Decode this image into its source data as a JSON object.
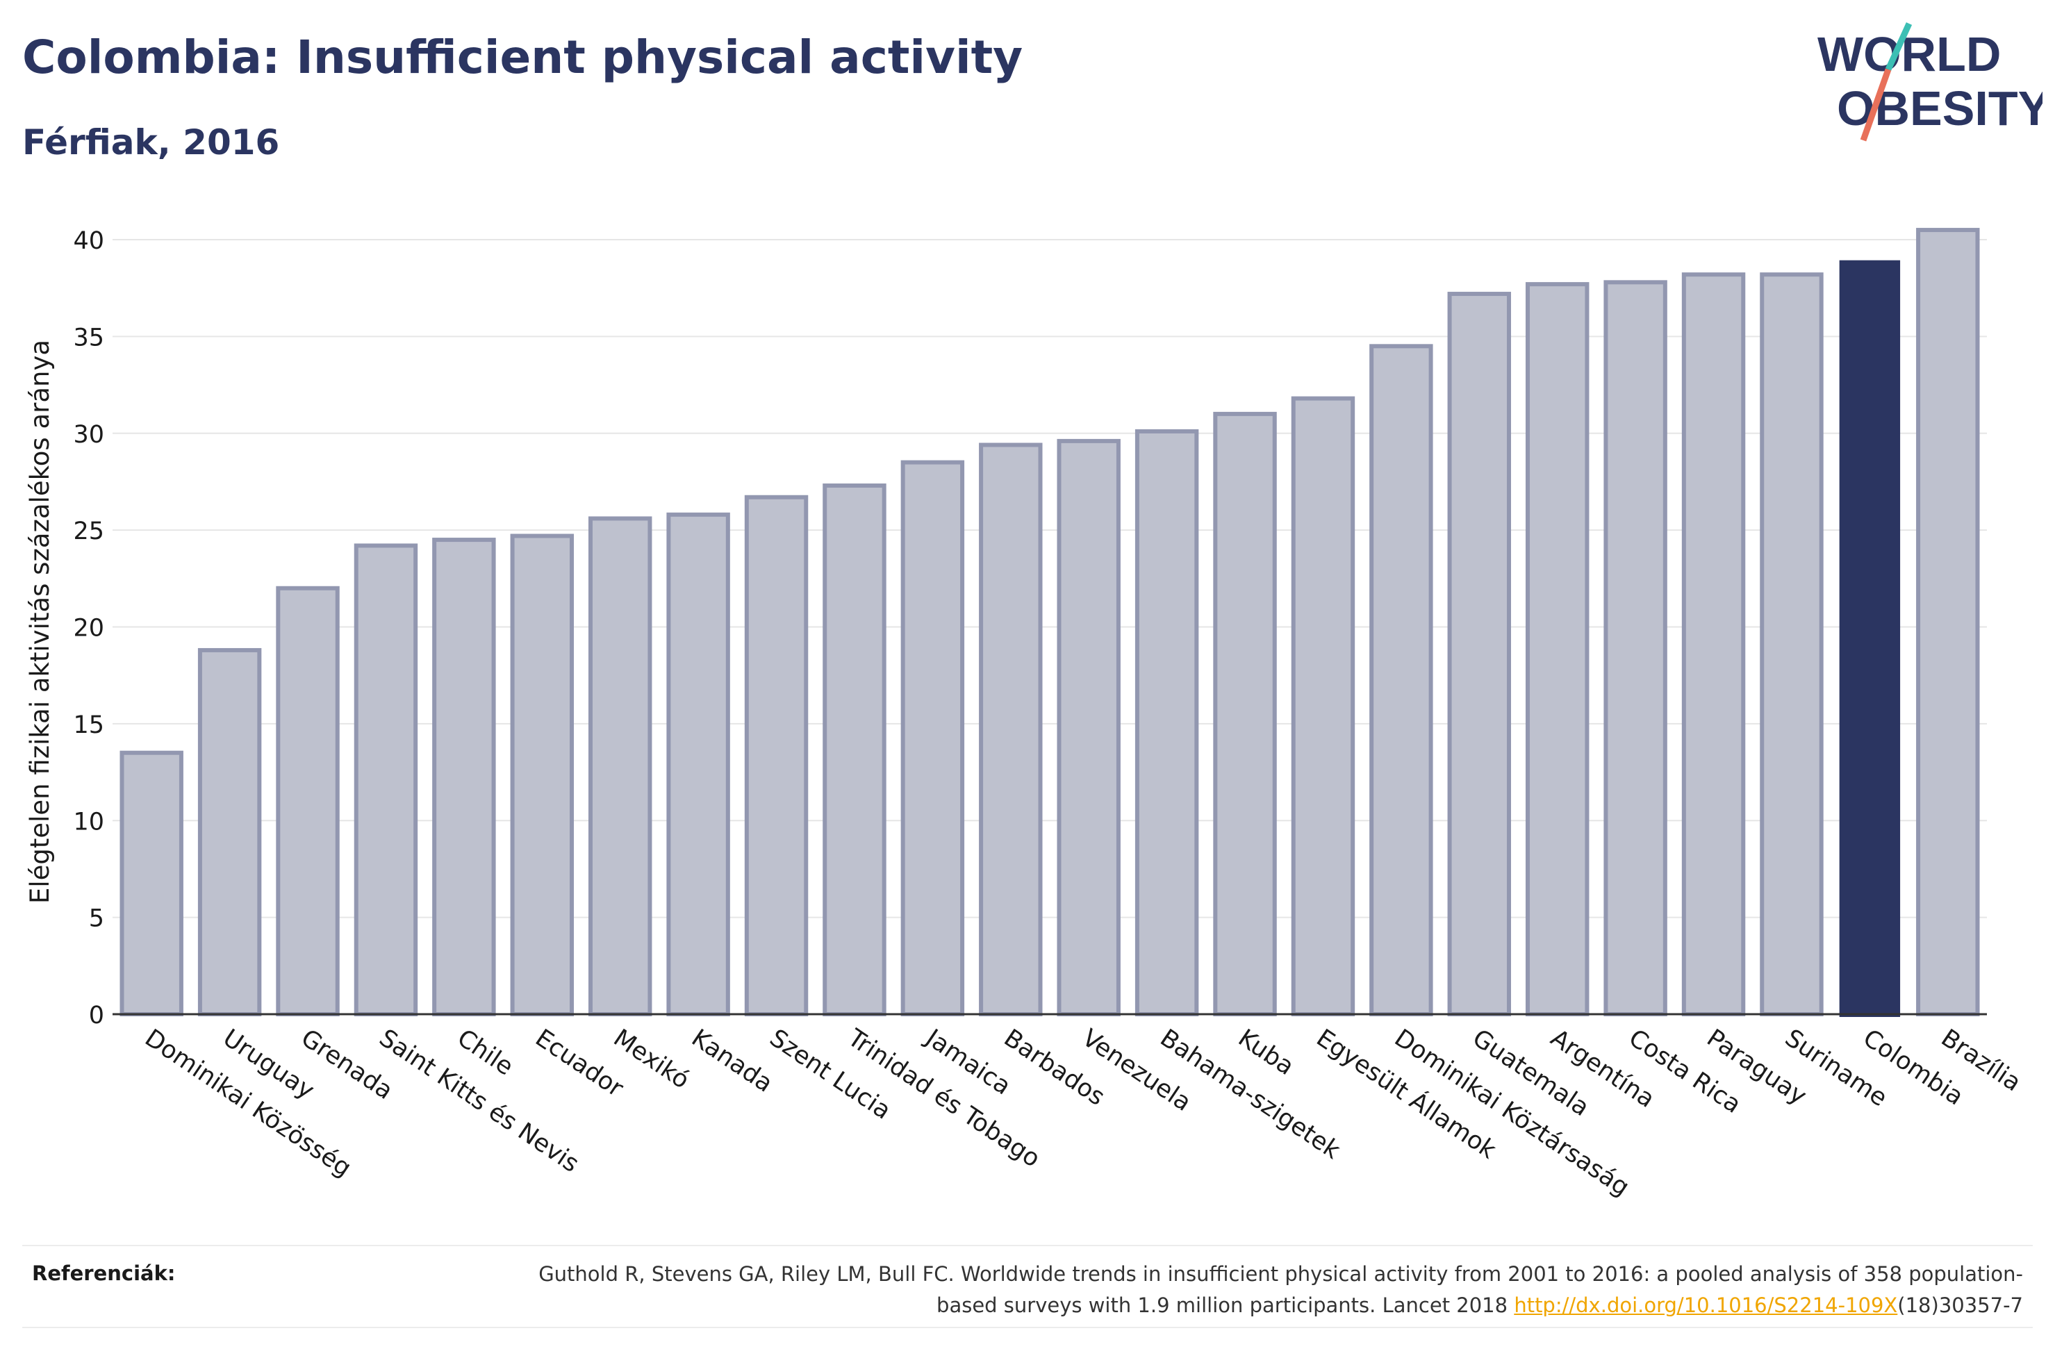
{
  "header": {
    "title": "Colombia: Insufficient physical activity",
    "subtitle": "Férfiak, 2016"
  },
  "logo": {
    "line1": "WORLD",
    "line2": "OBESITY",
    "colors": {
      "text": "#2b3561",
      "slash_teal": "#3cbfb4",
      "slash_coral": "#e8705a"
    }
  },
  "colors": {
    "bar_fill": "#bec1ce",
    "bar_stroke": "#9297b0",
    "highlight": "#2b3561",
    "grid": "#e6e6e6",
    "axis": "#333333"
  },
  "chart_data": {
    "type": "bar",
    "title": "Colombia: Insufficient physical activity",
    "subtitle": "Férfiak, 2016",
    "ylabel": "Elégtelen fizikai aktivitás százalékos aránya",
    "xlabel": "",
    "ylim": [
      0,
      42
    ],
    "yticks": [
      0,
      5,
      10,
      15,
      20,
      25,
      30,
      35,
      40
    ],
    "grid": true,
    "highlight": "Colombia",
    "categories": [
      "Dominikai Közösség",
      "Uruguay",
      "Grenada",
      "Saint Kitts és Nevis",
      "Chile",
      "Ecuador",
      "Mexikó",
      "Kanada",
      "Szent Lucia",
      "Trinidad és Tobago",
      "Jamaica",
      "Barbados",
      "Venezuela",
      "Bahama-szigetek",
      "Kuba",
      "Egyesült Államok",
      "Dominikai Köztársaság",
      "Guatemala",
      "Argentína",
      "Costa Rica",
      "Paraguay",
      "Suriname",
      "Colombia",
      "Brazília"
    ],
    "values": [
      13.5,
      18.8,
      22.0,
      24.2,
      24.5,
      24.7,
      25.6,
      25.8,
      26.7,
      27.3,
      28.5,
      29.4,
      29.6,
      30.1,
      31.0,
      31.8,
      34.5,
      37.2,
      37.7,
      37.8,
      38.2,
      38.2,
      38.9,
      40.5
    ]
  },
  "footer": {
    "label": "Referenciák:",
    "text_before": "Guthold R, Stevens GA, Riley LM, Bull FC. Worldwide trends in insufficient physical activity from 2001 to 2016: a pooled analysis of 358 population-based surveys with 1.9 million participants. Lancet 2018 ",
    "link": "http://dx.doi.org/10.1016/S2214-109X",
    "text_after": "(18)30357-7"
  }
}
